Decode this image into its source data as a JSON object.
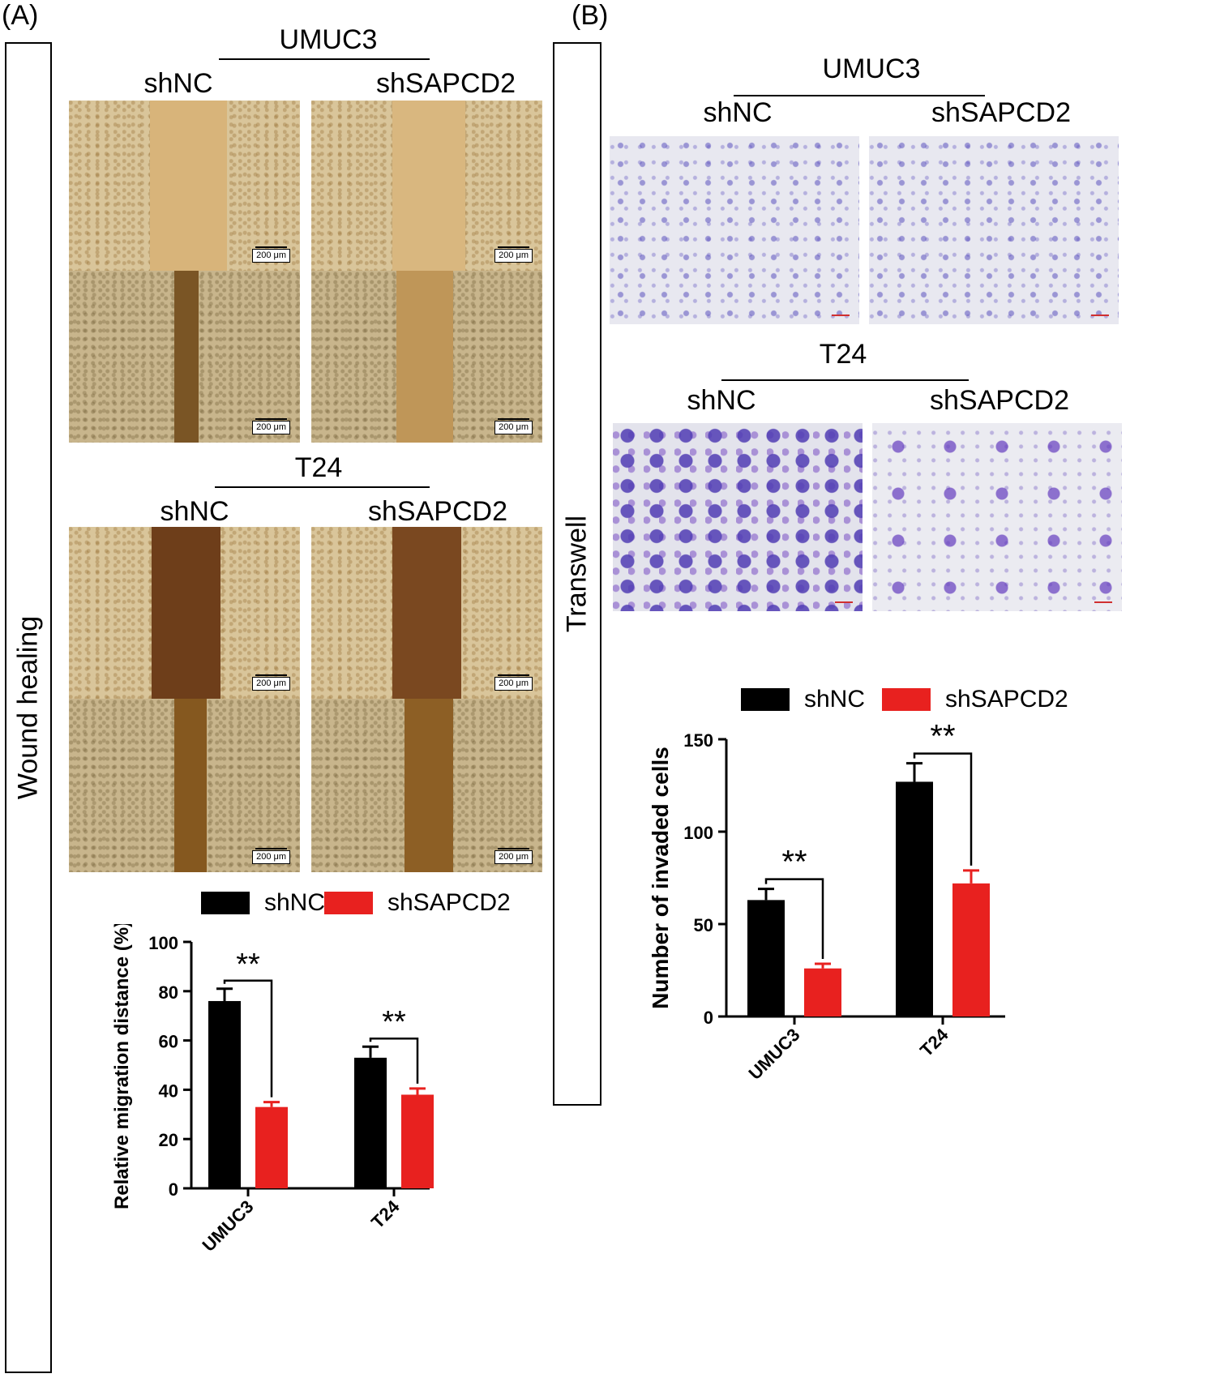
{
  "panel_a": {
    "letter": "(A)",
    "side_label": "Wound healing",
    "umuc3": {
      "cell_line": "UMUC3",
      "left": "shNC",
      "right": "shSAPCD2"
    },
    "t24": {
      "cell_line": "T24",
      "left": "shNC",
      "right": "shSAPCD2"
    },
    "scale_label": "200 μm"
  },
  "panel_b": {
    "letter": "(B)",
    "side_label": "Transwell",
    "umuc3": {
      "cell_line": "UMUC3",
      "left": "shNC",
      "right": "shSAPCD2"
    },
    "t24": {
      "cell_line": "T24",
      "left": "shNC",
      "right": "shSAPCD2"
    }
  },
  "colors": {
    "shNC": "#000000",
    "shSAPCD2": "#e8211f"
  },
  "chart_data": [
    {
      "type": "bar",
      "categories": [
        "UMUC3",
        "T24"
      ],
      "series": [
        {
          "name": "shNC",
          "values": [
            76,
            53
          ],
          "errors": [
            5,
            4.5
          ]
        },
        {
          "name": "shSAPCD2",
          "values": [
            33,
            38
          ],
          "errors": [
            2,
            2.5
          ]
        }
      ],
      "ylabel": "Relative migration distance (%)",
      "ylim": [
        0,
        100
      ],
      "yticks": [
        0,
        20,
        40,
        60,
        80,
        100
      ],
      "significance": [
        "**",
        "**"
      ],
      "legend": "top"
    },
    {
      "type": "bar",
      "categories": [
        "UMUC3",
        "T24"
      ],
      "series": [
        {
          "name": "shNC",
          "values": [
            63,
            127
          ],
          "errors": [
            6,
            10
          ]
        },
        {
          "name": "shSAPCD2",
          "values": [
            26,
            72
          ],
          "errors": [
            2.5,
            7
          ]
        }
      ],
      "ylabel": "Number of invaded cells",
      "ylim": [
        0,
        150
      ],
      "yticks": [
        0,
        50,
        100,
        150
      ],
      "significance": [
        "**",
        "**"
      ],
      "legend": "top"
    }
  ]
}
